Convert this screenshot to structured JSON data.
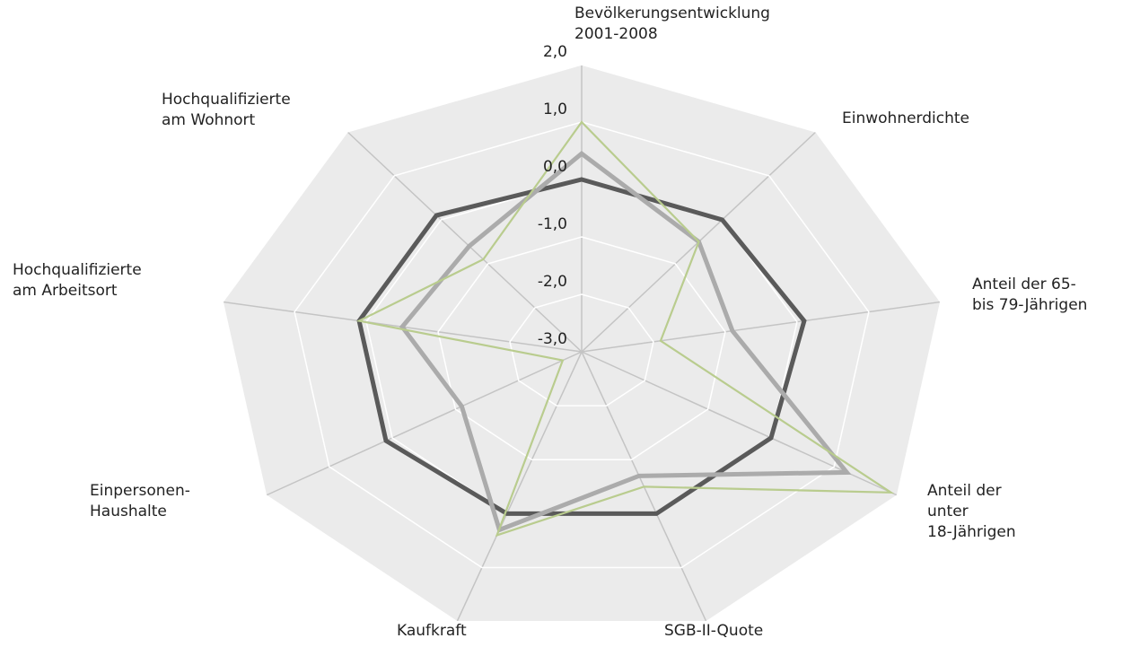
{
  "chart_data": {
    "type": "radar",
    "categories": [
      "Bevölkerungsentwicklung\n2001-2008",
      "Einwohnerdichte",
      "Anteil der 65-\nbis 79-Jährigen",
      "Anteil der\nunter\n18-Jährigen",
      "SGB-II-Quote",
      "Kaufkraft",
      "Einpersonen-\nHaushalte",
      "Hochqualifizierte\nam Arbeitsort",
      "Hochqualifizierte\nam Wohnort"
    ],
    "series": [
      {
        "color": "#5a5a5a",
        "values": [
          0.0,
          0.0,
          0.1,
          0.0,
          0.0,
          0.0,
          0.1,
          0.1,
          0.1
        ]
      },
      {
        "color": "#ababab",
        "values": [
          0.45,
          -0.5,
          -0.9,
          1.2,
          -0.7,
          0.3,
          -1.1,
          -0.5,
          -0.6
        ]
      },
      {
        "color": "#b9cc8e",
        "values": [
          1.0,
          -0.5,
          -1.9,
          1.9,
          -0.5,
          0.4,
          -2.7,
          0.1,
          -0.9
        ]
      }
    ],
    "ylim": [
      -3,
      2
    ],
    "yticks": [
      {
        "value": 2,
        "label": "2,0"
      },
      {
        "value": 1,
        "label": "1,0"
      },
      {
        "value": 0,
        "label": "0,0"
      },
      {
        "value": -1,
        "label": "-1,0"
      },
      {
        "value": -2,
        "label": "-2,0"
      },
      {
        "value": -3,
        "label": "-3,0"
      }
    ],
    "grid": true
  }
}
